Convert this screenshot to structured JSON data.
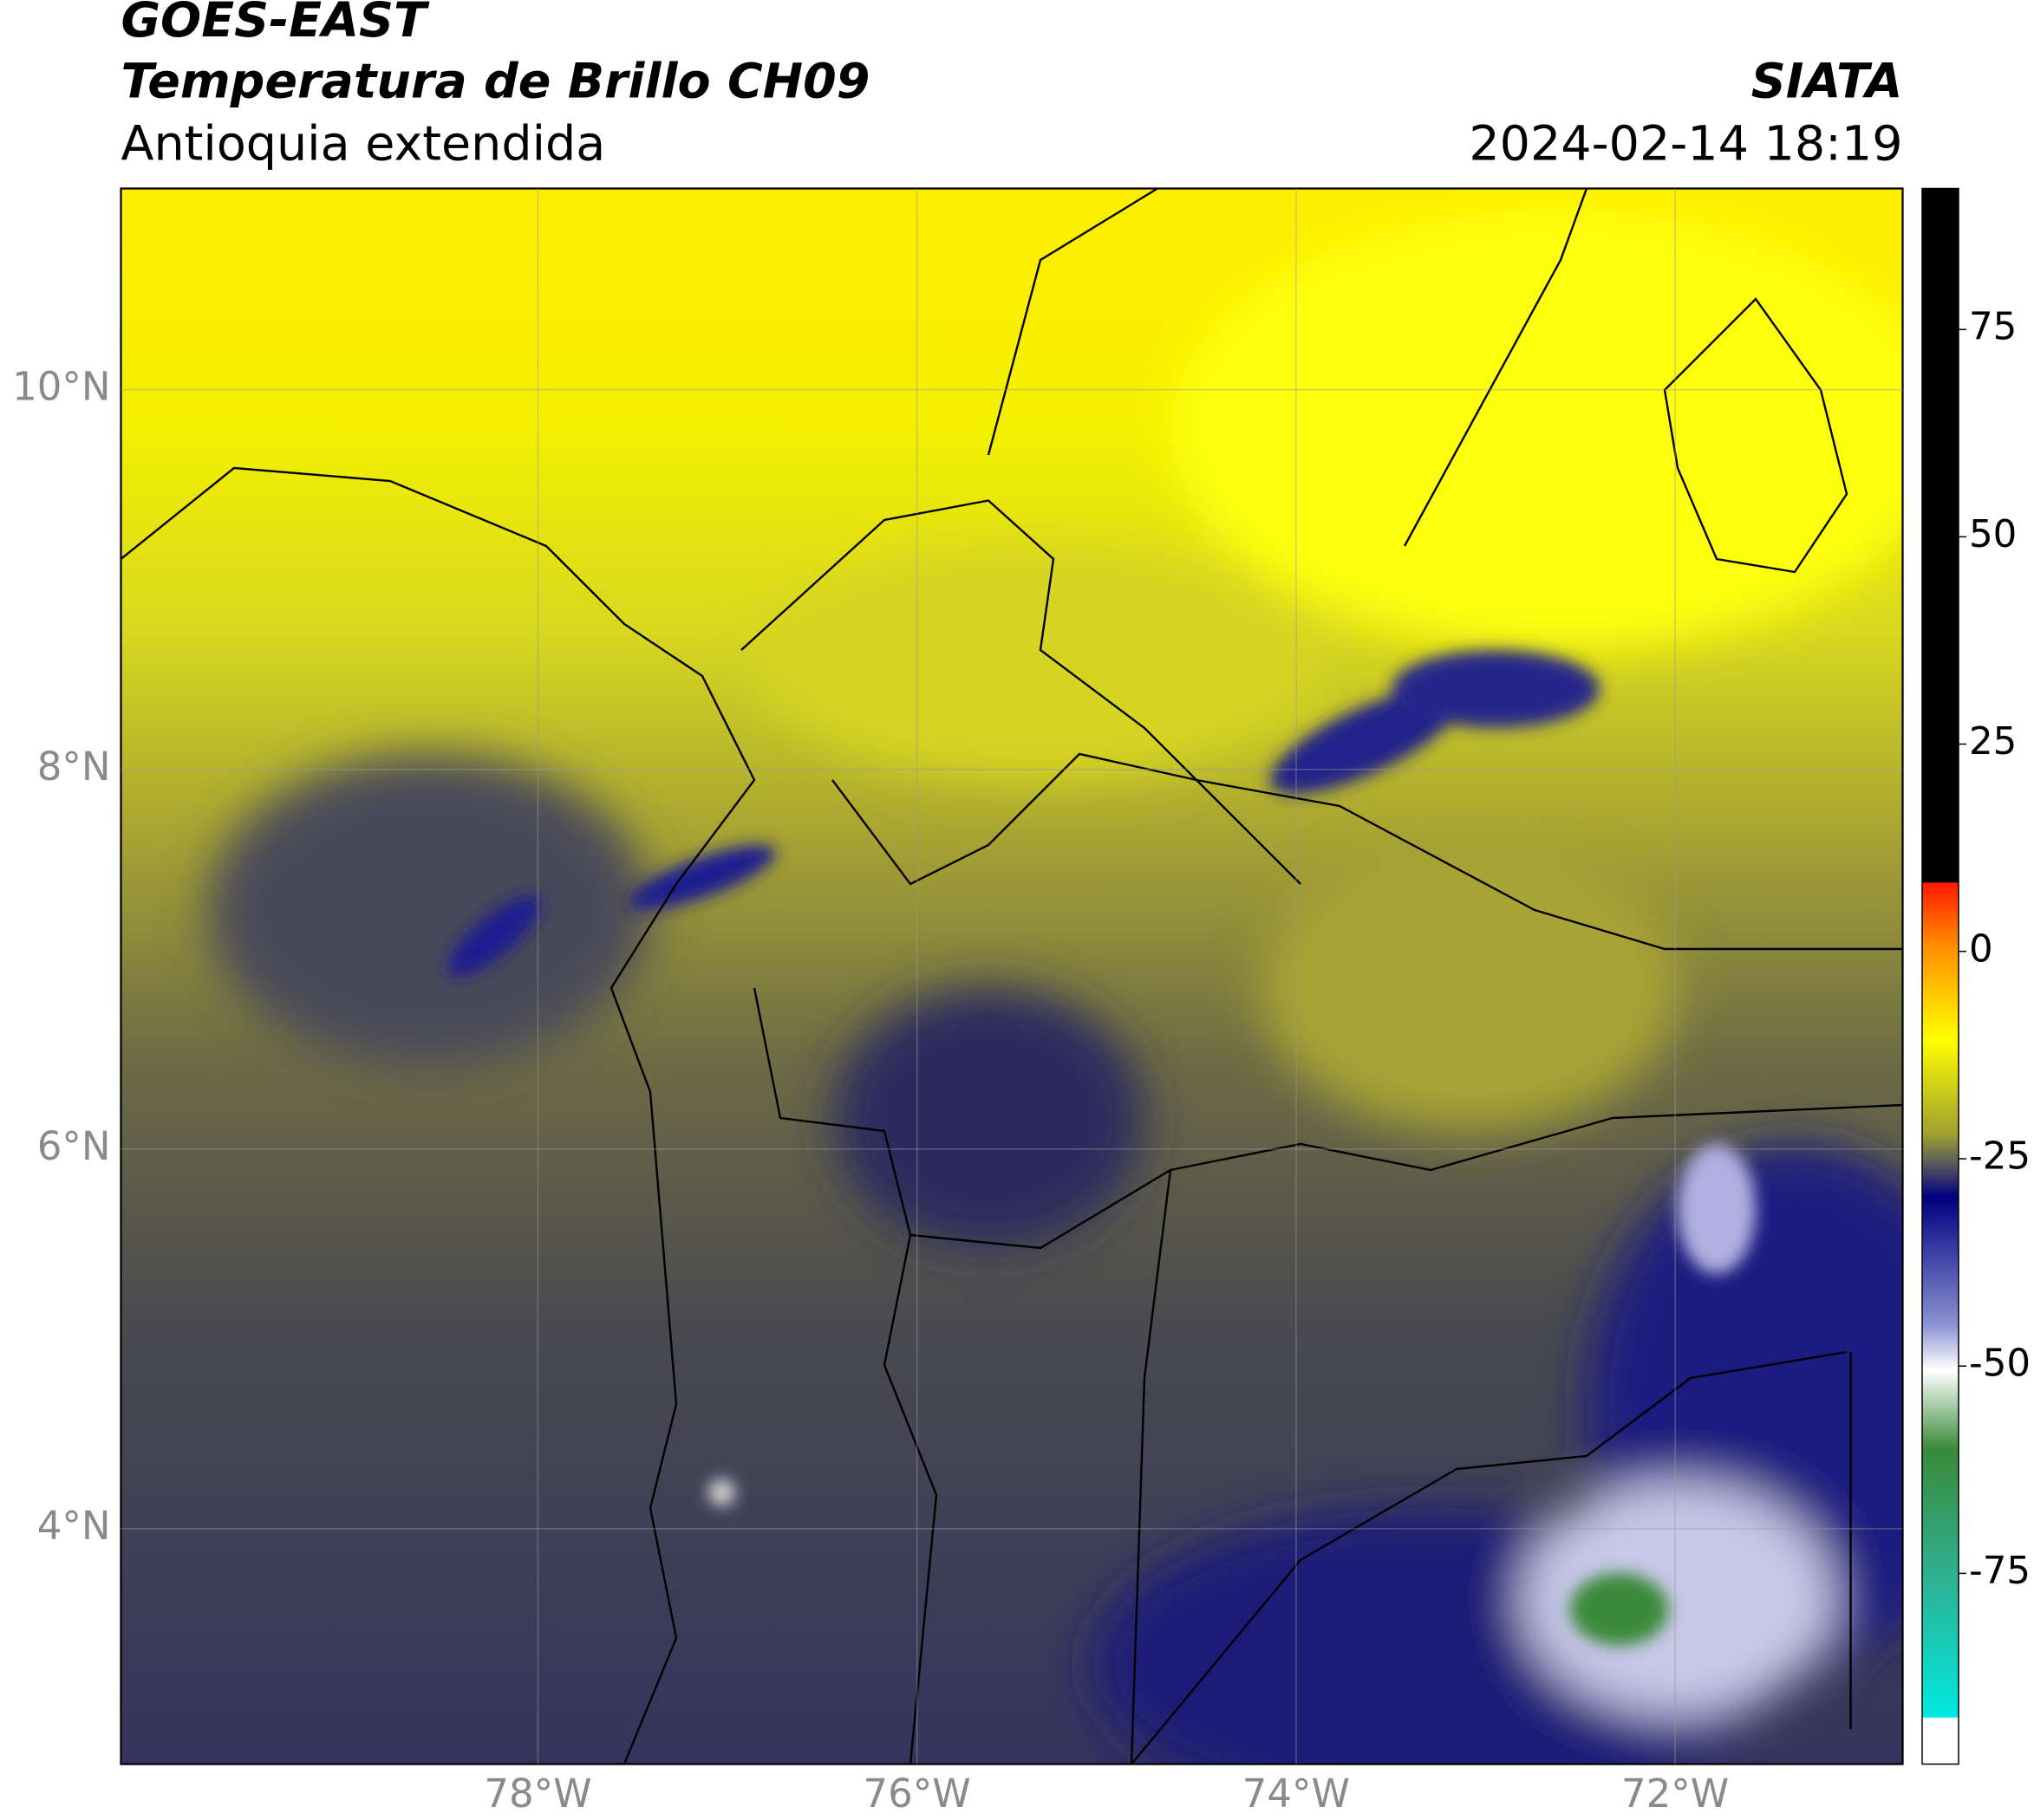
{
  "chart_data": {
    "type": "map",
    "title": "GOES-EAST",
    "subtitle": "Temperatura de Brillo CH09",
    "region": "Antioquia extendida",
    "source": "SIATA",
    "datetime": "2024-02-14 18:19",
    "xlim": [
      -80.2,
      -70.8
    ],
    "ylim": [
      2.76,
      11.06
    ],
    "xticks": [
      {
        "value": -78,
        "label": "78°W"
      },
      {
        "value": -76,
        "label": "76°W"
      },
      {
        "value": -74,
        "label": "74°W"
      },
      {
        "value": -72,
        "label": "72°W"
      }
    ],
    "yticks": [
      {
        "value": 10,
        "label": "10°N"
      },
      {
        "value": 8,
        "label": "8°N"
      },
      {
        "value": 6,
        "label": "6°N"
      },
      {
        "value": 4,
        "label": "4°N"
      }
    ],
    "grid": true,
    "colorbar": {
      "clim": [
        -98,
        92
      ],
      "ticks": [
        75,
        50,
        25,
        0,
        -25,
        -50,
        -75
      ]
    }
  }
}
